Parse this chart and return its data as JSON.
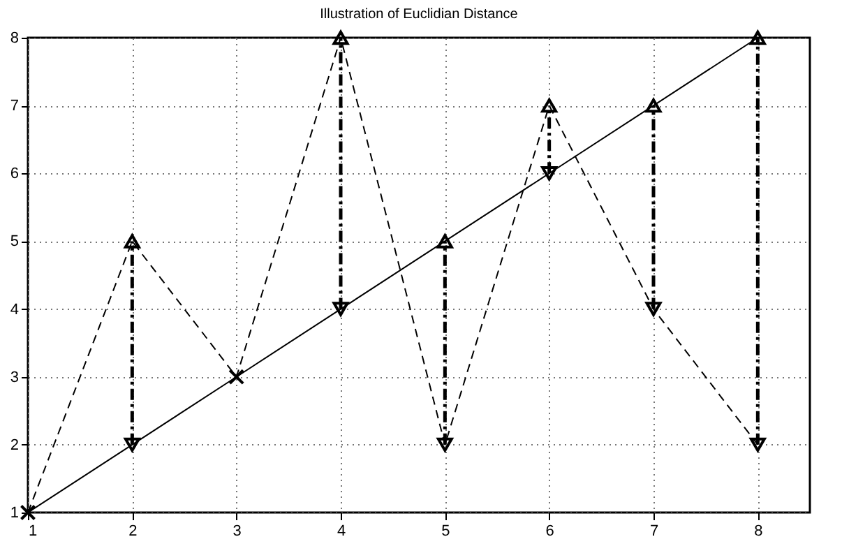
{
  "chart_data": {
    "type": "line",
    "title": "Illustration of Euclidian Distance",
    "x": [
      1,
      2,
      3,
      4,
      5,
      6,
      7,
      8
    ],
    "series": [
      {
        "color": "#000000",
        "line_style": "solid",
        "marker": "none",
        "values": [
          1,
          2,
          3,
          4,
          5,
          6,
          7,
          8
        ]
      },
      {
        "color": "#000000",
        "line_style": "dashed",
        "marker": "none",
        "values": [
          1,
          5,
          3,
          8,
          2,
          7,
          4,
          2
        ],
        "errors": [
          null,
          [
            2,
            5
          ],
          null,
          [
            4,
            8
          ],
          [
            2,
            5
          ],
          [
            6,
            7
          ],
          [
            4,
            7
          ],
          [
            2,
            8
          ]
        ]
      },
      {
        "type": "scatter",
        "color": "#000000",
        "marker": "cross",
        "x": [
          1,
          3
        ],
        "values": [
          1,
          3
        ]
      },
      {
        "type": "scatter",
        "color": "#000000",
        "marker": "triangle",
        "x": [
          2,
          4,
          5,
          6,
          7,
          8
        ],
        "values": [
          5,
          8,
          5,
          7,
          7,
          8
        ]
      },
      {
        "type": "scatter",
        "color": "#000000",
        "marker": "triangle-down",
        "x": [
          2,
          4,
          5,
          6,
          7,
          8
        ],
        "values": [
          2,
          4,
          2,
          6,
          4,
          2
        ]
      }
    ],
    "xlim": [
      1,
      8.5
    ],
    "xticks": [
      1,
      2,
      3,
      4,
      5,
      6,
      7,
      8
    ],
    "ylim": [
      1,
      8
    ],
    "yticks": [
      1,
      2,
      3,
      4,
      5,
      6,
      7,
      8
    ],
    "grid": true
  }
}
